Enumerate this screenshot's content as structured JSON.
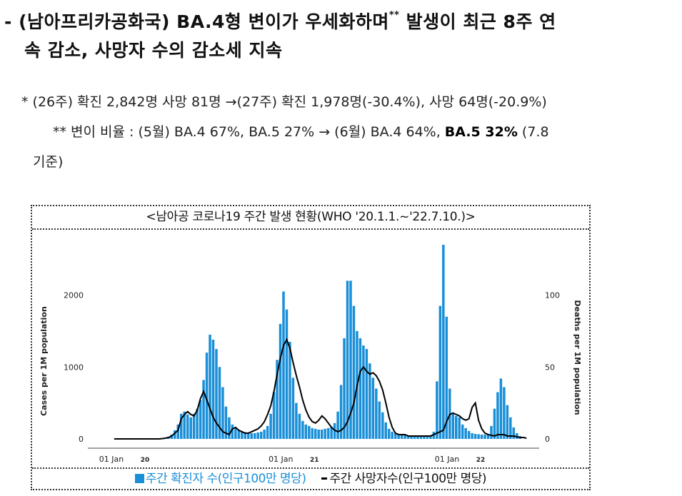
{
  "headline": {
    "line1_prefix": "- (남아프리카공화국) ",
    "line1_bold": "BA.4",
    "line1_rest": "형 변이가 우세화하며",
    "line1_mark": "**",
    "line1_tail": " 발생이 최근 8주 연",
    "line2": "속 감소, 사망자 수의 감소세 지속"
  },
  "notes": {
    "note1": "* (26주) 확진 2,842명 사망 81명 →(27주) 확진 1,978명(-30.4%), 사망 64명(-20.9%)",
    "note2_a": "** 변이 비율 : (5월) BA.4 67%, BA.5 27% →   (6월) BA.4 64%, ",
    "note2_b": "BA.5 32%",
    "note2_c": " (7.8",
    "note3": "기준)"
  },
  "chart_box": {
    "title": "<남아공 코로나19 주간 발생 현황(WHO '20.1.1.~'22.7.10.)>",
    "legend_cases": "주간 확진자 수(인구100만 명당)",
    "legend_deaths": "주간 사망자수(인구100만 명당)"
  },
  "chart_data": {
    "type": "bar",
    "bar_color": "#1a8fd8",
    "line_color": "#000000",
    "ylabel_left": "Cases per 1M population",
    "ylabel_right": "Deaths per 1M population",
    "ylim_left": [
      0,
      2700
    ],
    "ylim_right": [
      0,
      135
    ],
    "yticks_left": [
      "0",
      "1000",
      "2000"
    ],
    "yticks_right": [
      "0",
      "50",
      "100"
    ],
    "xticks": [
      {
        "label": "01 Jan",
        "year": "20",
        "week": 0
      },
      {
        "label": "01 Jan",
        "year": "21",
        "week": 53
      },
      {
        "label": "01 Jan",
        "year": "22",
        "week": 105
      }
    ],
    "grid": false,
    "series": [
      {
        "name": "주간 확진자 수(인구100만 명당)",
        "kind": "bar",
        "axis": "left",
        "values": [
          0,
          0,
          0,
          0,
          0,
          0,
          0,
          0,
          0,
          0,
          0,
          0,
          0,
          0,
          5,
          10,
          20,
          30,
          60,
          120,
          200,
          350,
          380,
          340,
          300,
          350,
          420,
          540,
          820,
          1200,
          1450,
          1380,
          1250,
          1000,
          720,
          450,
          300,
          200,
          150,
          120,
          100,
          95,
          90,
          80,
          80,
          90,
          100,
          130,
          180,
          350,
          650,
          1100,
          1600,
          2050,
          1800,
          1350,
          850,
          500,
          350,
          250,
          200,
          180,
          150,
          140,
          130,
          130,
          140,
          150,
          170,
          220,
          380,
          750,
          1400,
          2200,
          2200,
          1850,
          1500,
          1400,
          1300,
          1250,
          1050,
          850,
          700,
          520,
          370,
          230,
          140,
          100,
          80,
          70,
          60,
          55,
          50,
          45,
          45,
          45,
          45,
          40,
          40,
          40,
          100,
          800,
          1850,
          2700,
          1700,
          700,
          350,
          320,
          300,
          200,
          150,
          110,
          80,
          70,
          65,
          60,
          60,
          70,
          180,
          420,
          650,
          840,
          720,
          470,
          300,
          160,
          80,
          40
        ]
      },
      {
        "name": "주간 사망자수(인구100만 명당)",
        "kind": "line",
        "axis": "right",
        "values": [
          0,
          0,
          0,
          0,
          0,
          0,
          0,
          0,
          0,
          0,
          0,
          0,
          0,
          0,
          0,
          0.2,
          0.5,
          1,
          2,
          4,
          6,
          14,
          17,
          19,
          17,
          16,
          20,
          28,
          33,
          27,
          21,
          15,
          11,
          8,
          5,
          4,
          3,
          7,
          8,
          6,
          5,
          4,
          4,
          5,
          6,
          7,
          9,
          12,
          17,
          23,
          33,
          45,
          56,
          65,
          69,
          63,
          53,
          44,
          36,
          27,
          20,
          15,
          12,
          11,
          13,
          16,
          14,
          11,
          8,
          6,
          5,
          6,
          8,
          12,
          18,
          25,
          37,
          47,
          50,
          47,
          45,
          46,
          44,
          40,
          34,
          25,
          15,
          8,
          4,
          3,
          3,
          3,
          2,
          2,
          2,
          2,
          2,
          2,
          2,
          2,
          3,
          4,
          5,
          6,
          12,
          17,
          18,
          17,
          16,
          14,
          13,
          14,
          22,
          25,
          13,
          7,
          4,
          3,
          2.5,
          2,
          3,
          3,
          3,
          2,
          2,
          2,
          1.5,
          1,
          1,
          0.5
        ]
      }
    ]
  }
}
